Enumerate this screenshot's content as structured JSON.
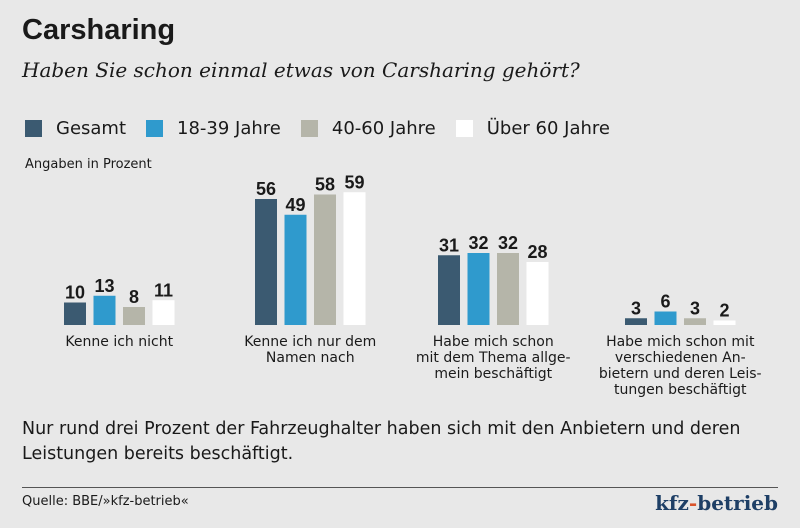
{
  "title": "Carsharing",
  "subtitle": "Haben Sie schon einmal etwas von Carsharing gehört?",
  "unit_label": "Angaben in Prozent",
  "note": "Nur rund drei Prozent der Fahrzeughalter haben sich mit den Anbietern und deren Leistungen bereits beschäftigt.",
  "source": "Quelle: BBE/»kfz-betrieb«",
  "logo": "kfz-betrieb",
  "chart_data": {
    "type": "bar",
    "categories": [
      [
        "Kenne ich nicht"
      ],
      [
        "Kenne ich nur dem",
        "Namen nach"
      ],
      [
        "Habe mich schon",
        "mit dem Thema allge-",
        "mein beschäftigt"
      ],
      [
        "Habe mich schon mit",
        "verschiedenen An-",
        "bietern und deren Leis-",
        "tungen beschäftigt"
      ]
    ],
    "series": [
      {
        "name": "Gesamt",
        "color": "#3b5a71",
        "values": [
          10,
          56,
          31,
          3
        ]
      },
      {
        "name": "18-39 Jahre",
        "color": "#2f9acd",
        "values": [
          13,
          49,
          32,
          6
        ]
      },
      {
        "name": "40-60 Jahre",
        "color": "#b5b5a9",
        "values": [
          8,
          58,
          32,
          3
        ]
      },
      {
        "name": "Über 60 Jahre",
        "color": "#ffffff",
        "values": [
          11,
          59,
          28,
          2
        ]
      }
    ],
    "ylim": [
      0,
      60
    ],
    "grid": false,
    "legend": "top-left",
    "data_labels": true
  }
}
